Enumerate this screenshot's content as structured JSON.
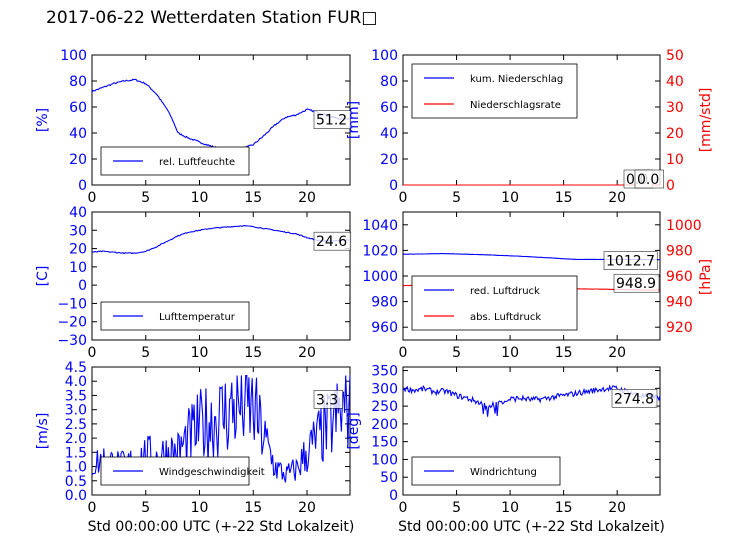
{
  "page": {
    "title": "2017-06-22 Wetterdaten Station FUR□"
  },
  "colors": {
    "primary": "#0000ff",
    "secondary": "#ff0000",
    "axes": "#000000"
  },
  "chart_data": [
    {
      "type": "line",
      "panel": "humidity",
      "xlim": [
        0,
        24
      ],
      "ylim": [
        0,
        100
      ],
      "x_ticks": [
        "0",
        "5",
        "10",
        "15",
        "20"
      ],
      "y_ticks": [
        "0",
        "20",
        "40",
        "60",
        "80",
        "100"
      ],
      "ylabel": "[%]",
      "xlabel": "",
      "last_value_label": "51.2",
      "legend_position": "lower-left",
      "series": [
        {
          "name": "rel. Luftfeuchte",
          "color": "#0000ff",
          "x": [
            0,
            1,
            2,
            3,
            4,
            5,
            6,
            7,
            7.5,
            8,
            9,
            10,
            11,
            12,
            13,
            14,
            15,
            16,
            17,
            18,
            19,
            20,
            21,
            22,
            23,
            24
          ],
          "y": [
            72,
            75,
            78,
            80,
            81,
            78,
            70,
            58,
            50,
            40,
            36,
            33,
            30,
            28,
            27,
            28,
            31,
            38,
            46,
            52,
            54,
            58,
            56,
            53,
            51,
            51
          ]
        }
      ]
    },
    {
      "type": "line",
      "panel": "precipitation",
      "xlim": [
        0,
        24
      ],
      "ylim": [
        0,
        100
      ],
      "y2lim": [
        0,
        50
      ],
      "x_ticks": [
        "0",
        "5",
        "10",
        "15",
        "20"
      ],
      "y_ticks": [
        "0",
        "20",
        "40",
        "60",
        "80",
        "100"
      ],
      "y2_ticks": [
        "0",
        "10",
        "20",
        "30",
        "40",
        "50"
      ],
      "ylabel": "[mm]",
      "y2label": "[mm/std]",
      "xlabel": "",
      "last_value_label": "0.0",
      "last_value_label_2": "0.0",
      "legend_position": "upper-left",
      "series": [
        {
          "name": "kum. Niederschlag",
          "color": "#0000ff",
          "axis": "left",
          "x": [
            0,
            24
          ],
          "y": [
            0,
            0
          ]
        },
        {
          "name": "Niederschlagsrate",
          "color": "#ff0000",
          "axis": "right",
          "x": [
            0,
            24
          ],
          "y": [
            0,
            0
          ]
        }
      ]
    },
    {
      "type": "line",
      "panel": "temperature",
      "xlim": [
        0,
        24
      ],
      "ylim": [
        -30,
        40
      ],
      "x_ticks": [
        "0",
        "5",
        "10",
        "15",
        "20"
      ],
      "y_ticks": [
        "−30",
        "−20",
        "−10",
        "0",
        "10",
        "20",
        "30",
        "40"
      ],
      "ylabel": "[C]",
      "xlabel": "",
      "last_value_label": "24.6",
      "legend_position": "lower-left",
      "series": [
        {
          "name": "Lufttemperatur",
          "color": "#0000ff",
          "x": [
            0,
            1,
            2,
            3,
            4,
            5,
            6,
            7,
            8,
            9,
            10,
            11,
            12,
            13,
            14,
            15,
            16,
            17,
            18,
            19,
            20,
            21,
            22,
            23,
            24
          ],
          "y": [
            18,
            18.5,
            18,
            17.5,
            17.5,
            18.5,
            21,
            24,
            27,
            29,
            30,
            31,
            31.5,
            32,
            32.5,
            32,
            31,
            30,
            29,
            28,
            26,
            24.5,
            24,
            24.5,
            24.6
          ]
        }
      ]
    },
    {
      "type": "line",
      "panel": "pressure",
      "xlim": [
        0,
        24
      ],
      "ylim": [
        950,
        1050
      ],
      "y2lim": [
        910,
        1010
      ],
      "x_ticks": [
        "0",
        "5",
        "10",
        "15",
        "20"
      ],
      "y_ticks": [
        "960",
        "980",
        "1000",
        "1020",
        "1040"
      ],
      "y2_ticks": [
        "920",
        "940",
        "960",
        "980",
        "1000"
      ],
      "ylabel": "",
      "y2label": "[hPa]",
      "xlabel": "",
      "last_value_label": "1012.7",
      "last_value_label_2": "948.9",
      "legend_position": "lower-left",
      "series": [
        {
          "name": "red. Luftdruck",
          "color": "#0000ff",
          "axis": "left",
          "x": [
            0,
            4,
            8,
            12,
            16,
            20,
            24
          ],
          "y": [
            1017,
            1017.5,
            1016.5,
            1015,
            1013,
            1013,
            1012.7
          ]
        },
        {
          "name": "abs. Luftdruck",
          "color": "#ff0000",
          "axis": "right",
          "x": [
            0,
            4,
            8,
            12,
            16,
            20,
            24
          ],
          "y": [
            952.5,
            953,
            953,
            952,
            950,
            949.5,
            948.9
          ]
        }
      ]
    },
    {
      "type": "line",
      "panel": "wind-speed",
      "xlim": [
        0,
        24
      ],
      "ylim": [
        0,
        4.5
      ],
      "x_ticks": [
        "0",
        "5",
        "10",
        "15",
        "20"
      ],
      "y_ticks": [
        "0.0",
        "0.5",
        "1.0",
        "1.5",
        "2.0",
        "2.5",
        "3.0",
        "3.5",
        "4.0",
        "4.5"
      ],
      "ylabel": "[m/s]",
      "xlabel": "Std 00:00:00 UTC (+-22 Std Lokalzeit)",
      "last_value_label": "3.3",
      "legend_position": "lower-left",
      "series": [
        {
          "name": "Windgeschwindigkeit",
          "color": "#0000ff",
          "x": [
            0,
            1,
            2,
            3,
            4,
            5,
            6,
            7,
            8,
            9,
            10,
            11,
            12,
            13,
            14,
            15,
            16,
            17,
            18,
            19,
            20,
            21,
            22,
            23,
            24
          ],
          "y": [
            1.1,
            1.2,
            1.1,
            1.0,
            1.2,
            1.4,
            1.3,
            1.5,
            1.5,
            2.0,
            2.4,
            2.6,
            2.8,
            3.0,
            3.2,
            3.0,
            2.0,
            1.0,
            0.7,
            0.9,
            1.5,
            2.0,
            2.4,
            2.8,
            3.3
          ]
        }
      ]
    },
    {
      "type": "line",
      "panel": "wind-direction",
      "xlim": [
        0,
        24
      ],
      "ylim": [
        0,
        360
      ],
      "x_ticks": [
        "0",
        "5",
        "10",
        "15",
        "20"
      ],
      "y_ticks": [
        "0",
        "50",
        "100",
        "150",
        "200",
        "250",
        "300",
        "350"
      ],
      "ylabel": "[deg]",
      "xlabel": "Std 00:00:00 UTC (+-22 Std Lokalzeit)",
      "last_value_label": "274.8",
      "legend_position": "lower-left",
      "series": [
        {
          "name": "Windrichtung",
          "color": "#0000ff",
          "x": [
            0,
            1,
            2,
            3,
            4,
            5,
            6,
            7,
            8,
            9,
            10,
            11,
            12,
            13,
            14,
            15,
            16,
            17,
            18,
            19,
            20,
            21,
            22,
            23,
            24
          ],
          "y": [
            300,
            295,
            298,
            290,
            292,
            280,
            272,
            262,
            250,
            262,
            270,
            272,
            268,
            270,
            275,
            280,
            285,
            290,
            295,
            300,
            300,
            290,
            280,
            276,
            274.8
          ]
        }
      ]
    }
  ]
}
